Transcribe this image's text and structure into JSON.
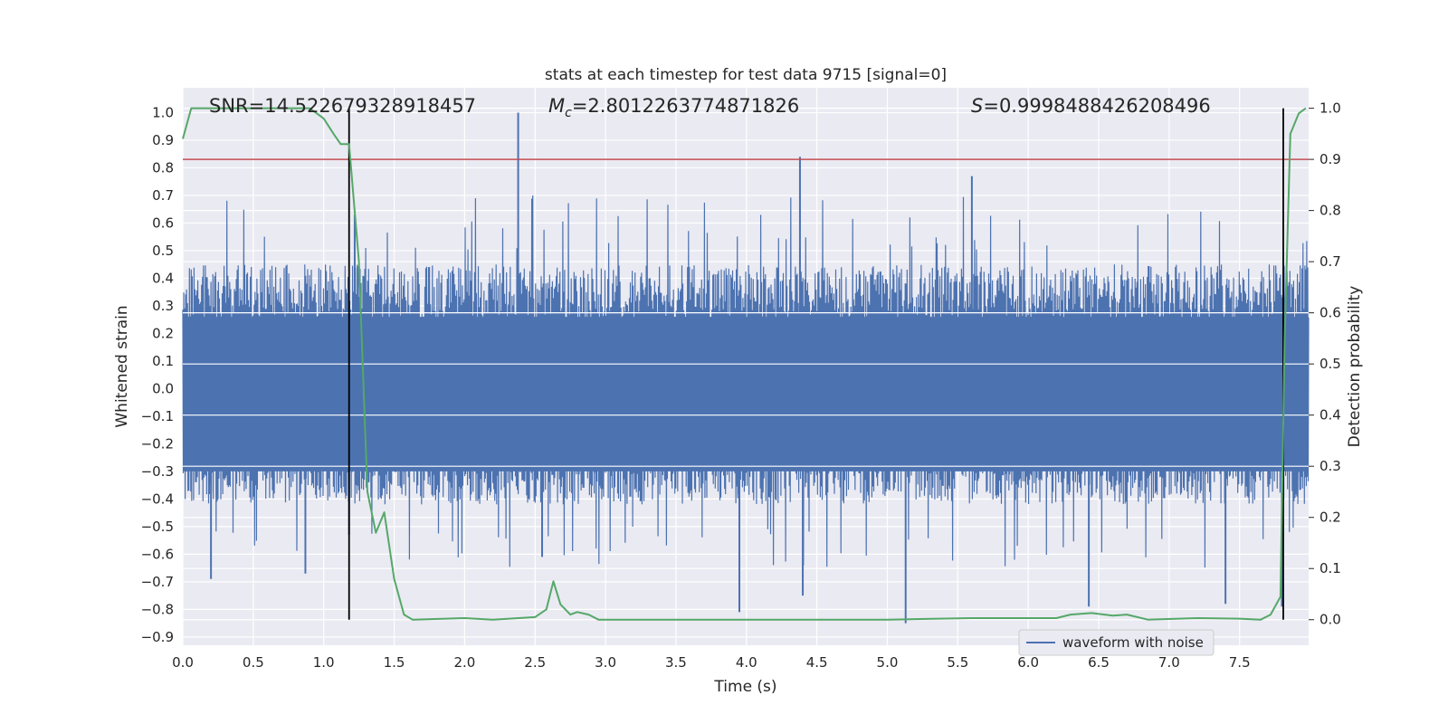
{
  "chart_data": {
    "type": "line",
    "title": "stats at each timestep for test data 9715 [signal=0]",
    "xlabel": "Time (s)",
    "ylabel": "Whitened strain",
    "y2label": "Detection probability",
    "xlim": [
      0.0,
      7.99
    ],
    "ylim": [
      -0.93,
      1.09
    ],
    "y2lim": [
      -0.05,
      1.04
    ],
    "x_ticks": [
      "0.0",
      "0.5",
      "1.0",
      "1.5",
      "2.0",
      "2.5",
      "3.0",
      "3.5",
      "4.0",
      "4.5",
      "5.0",
      "5.5",
      "6.0",
      "6.5",
      "7.0",
      "7.5"
    ],
    "y_ticks": [
      "−0.9",
      "−0.8",
      "−0.7",
      "−0.6",
      "−0.5",
      "−0.4",
      "−0.3",
      "−0.2",
      "−0.1",
      "0.0",
      "0.1",
      "0.2",
      "0.3",
      "0.4",
      "0.5",
      "0.6",
      "0.7",
      "0.8",
      "0.9",
      "1.0"
    ],
    "y2_ticks": [
      "0.0",
      "0.1",
      "0.2",
      "0.3",
      "0.4",
      "0.5",
      "0.6",
      "0.7",
      "0.8",
      "0.9",
      "1.0"
    ],
    "grid": true,
    "legend_position": "lower-right",
    "annotations": {
      "snr": "SNR=14.522679328918457",
      "mc_symbol": "M",
      "mc_sub": "c",
      "mc_value": "=2.8012263774871826",
      "s_symbol": "S",
      "s_value": "=0.9998488426208496"
    },
    "series": [
      {
        "name": "waveform with noise",
        "axis": "left",
        "color": "#4c72b0",
        "kind": "noise",
        "typical_range": [
          -0.42,
          0.45
        ],
        "spikes": [
          {
            "x": 0.2,
            "y": -0.69
          },
          {
            "x": 0.87,
            "y": -0.67
          },
          {
            "x": 1.18,
            "y": -0.53
          },
          {
            "x": 1.22,
            "y": 0.63
          },
          {
            "x": 2.38,
            "y": 1.0
          },
          {
            "x": 2.55,
            "y": -0.61
          },
          {
            "x": 3.95,
            "y": -0.81
          },
          {
            "x": 4.38,
            "y": 0.84
          },
          {
            "x": 4.4,
            "y": -0.75
          },
          {
            "x": 5.13,
            "y": -0.85
          },
          {
            "x": 5.6,
            "y": 0.77
          },
          {
            "x": 6.43,
            "y": -0.79
          },
          {
            "x": 7.4,
            "y": -0.78
          },
          {
            "x": 7.8,
            "y": -0.79
          }
        ]
      },
      {
        "name": "detection probability",
        "axis": "right",
        "color": "#55a868",
        "x": [
          0.0,
          0.06,
          0.9,
          1.0,
          1.07,
          1.12,
          1.18,
          1.25,
          1.31,
          1.37,
          1.43,
          1.5,
          1.57,
          1.63,
          2.0,
          2.2,
          2.5,
          2.58,
          2.63,
          2.68,
          2.75,
          2.8,
          2.88,
          2.95,
          3.2,
          4.0,
          5.0,
          5.6,
          6.2,
          6.3,
          6.45,
          6.6,
          6.7,
          6.85,
          7.2,
          7.5,
          7.65,
          7.72,
          7.79,
          7.82,
          7.86,
          7.92,
          7.97
        ],
        "y": [
          0.94,
          1.0,
          1.0,
          0.98,
          0.95,
          0.93,
          0.93,
          0.7,
          0.25,
          0.17,
          0.21,
          0.08,
          0.01,
          0.0,
          0.003,
          0.0,
          0.005,
          0.02,
          0.075,
          0.03,
          0.01,
          0.015,
          0.01,
          0.0,
          0.0,
          0.0,
          0.0,
          0.003,
          0.003,
          0.01,
          0.013,
          0.008,
          0.01,
          0.0,
          0.003,
          0.002,
          0.0,
          0.01,
          0.045,
          0.55,
          0.95,
          0.99,
          1.0
        ]
      }
    ],
    "threshold_line": {
      "axis": "right",
      "y": 0.9,
      "color": "#c44e52"
    },
    "vertical_markers": [
      {
        "x": 1.18,
        "range": [
          0.0,
          1.0
        ]
      },
      {
        "x": 7.81,
        "range": [
          0.0,
          1.0
        ]
      }
    ]
  }
}
